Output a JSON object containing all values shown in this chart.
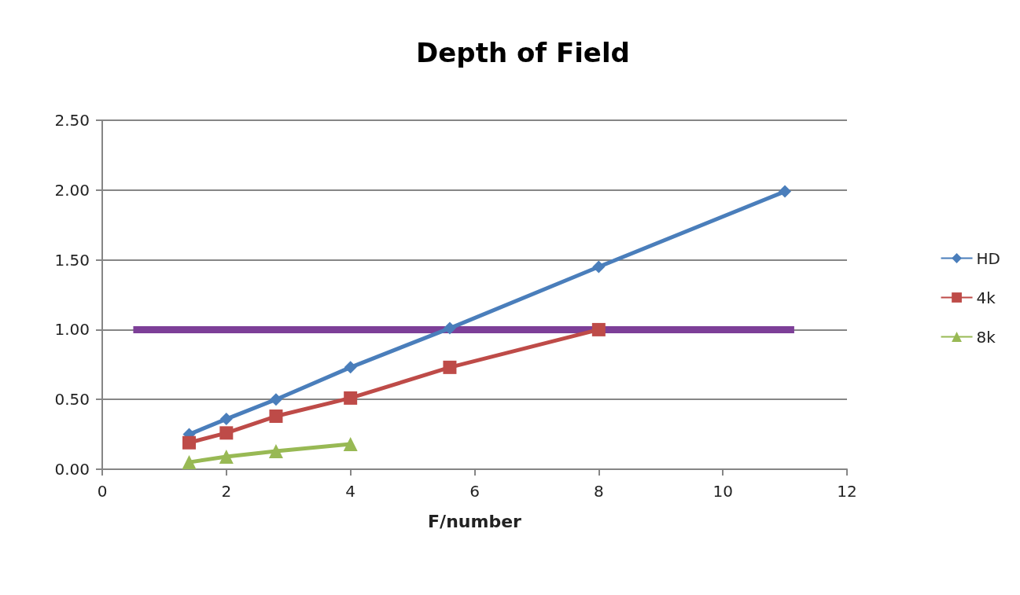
{
  "chart_data": {
    "type": "line",
    "title": "Depth of Field",
    "xlabel": "F/number",
    "xlim": [
      0,
      12
    ],
    "xticks": [
      0,
      2,
      4,
      6,
      8,
      10,
      12
    ],
    "ylim": [
      0,
      2.5
    ],
    "yticks": [
      {
        "value": 0,
        "label": "0.00"
      },
      {
        "value": 0.5,
        "label": "0.50"
      },
      {
        "value": 1,
        "label": "1.00"
      },
      {
        "value": 1.5,
        "label": "1.50"
      },
      {
        "value": 2,
        "label": "2.00"
      },
      {
        "value": 2.5,
        "label": "2.50"
      }
    ],
    "grid": "y",
    "legend": "right",
    "line_style": "solid",
    "series": [
      {
        "name": "HD",
        "color": "#4a7ebb",
        "marker": "diamond",
        "x": [
          1.4,
          2,
          2.8,
          4,
          5.6,
          8,
          11
        ],
        "values": [
          0.25,
          0.36,
          0.5,
          0.73,
          1.01,
          1.45,
          1.99
        ]
      },
      {
        "name": "4k",
        "color": "#be4b48",
        "marker": "square",
        "x": [
          1.4,
          2,
          2.8,
          4,
          5.6,
          8
        ],
        "values": [
          0.19,
          0.26,
          0.38,
          0.51,
          0.73,
          1.0
        ]
      },
      {
        "name": "8k",
        "color": "#98b954",
        "marker": "triangle",
        "x": [
          1.4,
          2,
          2.8,
          4
        ],
        "values": [
          0.05,
          0.09,
          0.13,
          0.18
        ]
      },
      {
        "color": "#7d3f98",
        "marker": "none",
        "x": [
          0.5,
          11.15
        ],
        "values": [
          1,
          1
        ]
      }
    ]
  }
}
